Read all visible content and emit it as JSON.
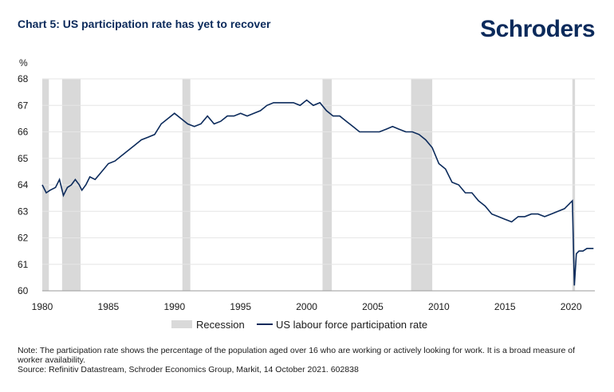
{
  "header": {
    "title": "Chart 5: US participation rate has yet to recover",
    "brand": "Schroders"
  },
  "notes": {
    "note": "Note: The participation rate shows the percentage of the population aged over 16 who are working or actively looking for work. It is a broad measure of worker availability.",
    "source": "Source: Refinitiv Datastream, Schroder Economics Group, Markit, 14 October 2021. 602838"
  },
  "colors": {
    "line": "#0b2a5b",
    "recession": "#d9d9d9",
    "grid": "#e6e6e6"
  },
  "chart_data": {
    "type": "line",
    "title": "Chart 5: US participation rate has yet to recover",
    "ylabel": "%",
    "xlabel": "",
    "xlim": [
      1980,
      2021.8
    ],
    "ylim": [
      60,
      68
    ],
    "xticks": [
      1980,
      1985,
      1990,
      1995,
      2000,
      2005,
      2010,
      2015,
      2020
    ],
    "yticks": [
      60,
      61,
      62,
      63,
      64,
      65,
      66,
      67,
      68
    ],
    "grid": true,
    "legend": {
      "position": "bottom",
      "entries": [
        "Recession",
        "US labour force participation rate"
      ]
    },
    "recessions": [
      [
        1980.0,
        1980.5
      ],
      [
        1981.5,
        1982.9
      ],
      [
        1990.6,
        1991.2
      ],
      [
        2001.2,
        2001.9
      ],
      [
        2007.9,
        2009.5
      ],
      [
        2020.1,
        2020.3
      ]
    ],
    "series": [
      {
        "name": "US labour force participation rate",
        "x": [
          1980.0,
          1980.3,
          1980.6,
          1981.0,
          1981.3,
          1981.6,
          1981.9,
          1982.2,
          1982.5,
          1982.8,
          1983.0,
          1983.3,
          1983.6,
          1984.0,
          1984.5,
          1985.0,
          1985.5,
          1986.0,
          1986.5,
          1987.0,
          1987.5,
          1988.0,
          1988.5,
          1989.0,
          1989.5,
          1990.0,
          1990.5,
          1991.0,
          1991.5,
          1992.0,
          1992.5,
          1993.0,
          1993.5,
          1994.0,
          1994.5,
          1995.0,
          1995.5,
          1996.0,
          1996.5,
          1997.0,
          1997.5,
          1998.0,
          1998.5,
          1999.0,
          1999.5,
          2000.0,
          2000.5,
          2001.0,
          2001.5,
          2002.0,
          2002.5,
          2003.0,
          2003.5,
          2004.0,
          2004.5,
          2005.0,
          2005.5,
          2006.0,
          2006.5,
          2007.0,
          2007.5,
          2008.0,
          2008.5,
          2009.0,
          2009.5,
          2010.0,
          2010.5,
          2011.0,
          2011.5,
          2012.0,
          2012.5,
          2013.0,
          2013.5,
          2014.0,
          2014.5,
          2015.0,
          2015.5,
          2016.0,
          2016.5,
          2017.0,
          2017.5,
          2018.0,
          2018.5,
          2019.0,
          2019.5,
          2019.9,
          2020.1,
          2020.25,
          2020.4,
          2020.6,
          2020.9,
          2021.2,
          2021.5,
          2021.7
        ],
        "values": [
          64.0,
          63.7,
          63.8,
          63.9,
          64.2,
          63.6,
          63.9,
          64.0,
          64.2,
          64.0,
          63.8,
          64.0,
          64.3,
          64.2,
          64.5,
          64.8,
          64.9,
          65.1,
          65.3,
          65.5,
          65.7,
          65.8,
          65.9,
          66.3,
          66.5,
          66.7,
          66.5,
          66.3,
          66.2,
          66.3,
          66.6,
          66.3,
          66.4,
          66.6,
          66.6,
          66.7,
          66.6,
          66.7,
          66.8,
          67.0,
          67.1,
          67.1,
          67.1,
          67.1,
          67.0,
          67.2,
          67.0,
          67.1,
          66.8,
          66.6,
          66.6,
          66.4,
          66.2,
          66.0,
          66.0,
          66.0,
          66.0,
          66.1,
          66.2,
          66.1,
          66.0,
          66.0,
          65.9,
          65.7,
          65.4,
          64.8,
          64.6,
          64.1,
          64.0,
          63.7,
          63.7,
          63.4,
          63.2,
          62.9,
          62.8,
          62.7,
          62.6,
          62.8,
          62.8,
          62.9,
          62.9,
          62.8,
          62.9,
          63.0,
          63.1,
          63.3,
          63.4,
          60.2,
          61.4,
          61.5,
          61.5,
          61.6,
          61.6,
          61.6
        ]
      }
    ]
  }
}
